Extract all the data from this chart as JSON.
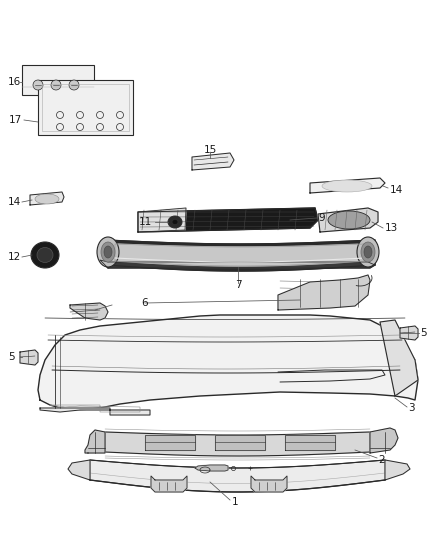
{
  "background_color": "#ffffff",
  "line_color": "#2a2a2a",
  "label_color": "#1a1a1a",
  "lw_main": 0.9,
  "lw_thin": 0.5,
  "lw_thick": 1.2
}
